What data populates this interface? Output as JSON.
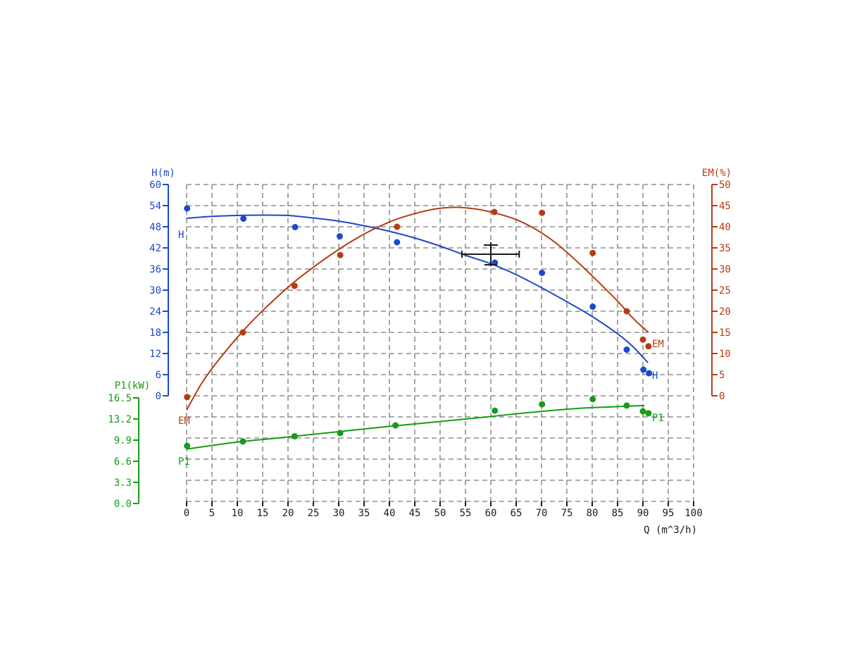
{
  "chart_data": {
    "type": "line",
    "title": "",
    "x_axis": {
      "label": "Q (m^3/h)",
      "min": 0,
      "max": 100,
      "tick_step": 5,
      "tick_labels": [
        "0",
        "5",
        "10",
        "15",
        "20",
        "25",
        "30",
        "35",
        "40",
        "45",
        "50",
        "55",
        "60",
        "65",
        "70",
        "75",
        "80",
        "85",
        "90",
        "95",
        "100"
      ],
      "text_color": "#1c1c1c"
    },
    "y_axes": [
      {
        "id": "H",
        "title": "H(m)",
        "unit": "m",
        "color": "#1c49cc",
        "min": 0,
        "max": 60,
        "tick_step": 6,
        "tick_labels": [
          "60",
          "54",
          "48",
          "42",
          "36",
          "30",
          "24",
          "18",
          "12",
          "6",
          "0"
        ]
      },
      {
        "id": "EM",
        "title": "EM(%)",
        "unit": "%",
        "color": "#b43c14",
        "min": 0,
        "max": 50,
        "tick_step": 5,
        "tick_labels": [
          "50",
          "45",
          "40",
          "35",
          "30",
          "25",
          "20",
          "15",
          "10",
          "5",
          "0"
        ]
      },
      {
        "id": "P1",
        "title": "P1(kW)",
        "unit": "kW",
        "color": "#169c16",
        "min": 0,
        "max": 16.5,
        "tick_step": 3.3,
        "tick_labels": [
          "16.5",
          "13.2",
          "9.9",
          "6.6",
          "3.3",
          "0.0"
        ]
      }
    ],
    "grid": {
      "show": true,
      "color": "#8f8f8f"
    },
    "series": [
      {
        "name": "H",
        "axis": "H",
        "color": "#1c49cc",
        "start_label": "H",
        "end_label": "H",
        "points": [
          [
            0.1,
            53.2
          ],
          [
            11.2,
            50.3
          ],
          [
            21.4,
            47.9
          ],
          [
            30.2,
            45.3
          ],
          [
            41.5,
            43.6
          ],
          [
            60.8,
            37.8
          ],
          [
            70.1,
            34.9
          ],
          [
            80.1,
            25.3
          ],
          [
            86.8,
            13.1
          ],
          [
            90.1,
            7.4
          ],
          [
            91.2,
            6.4
          ]
        ],
        "curve": [
          [
            0,
            50.4
          ],
          [
            5,
            50.95
          ],
          [
            10,
            51.2
          ],
          [
            15,
            51.3
          ],
          [
            20,
            51.2
          ],
          [
            25,
            50.5
          ],
          [
            30,
            49.6
          ],
          [
            35,
            48.3
          ],
          [
            40,
            46.7
          ],
          [
            45,
            44.8
          ],
          [
            50,
            42.5
          ],
          [
            55,
            39.9
          ],
          [
            60,
            37.5
          ],
          [
            65,
            34.4
          ],
          [
            70,
            30.7
          ],
          [
            75,
            26.7
          ],
          [
            80,
            22.5
          ],
          [
            85,
            17.6
          ],
          [
            88,
            14.0
          ],
          [
            91,
            9.4
          ]
        ]
      },
      {
        "name": "EM",
        "axis": "EM",
        "color": "#b43c14",
        "start_label": "EM",
        "end_label": "EM",
        "points": [
          [
            0.1,
            -0.3
          ],
          [
            11.1,
            15.0
          ],
          [
            21.3,
            26.0
          ],
          [
            30.3,
            33.3
          ],
          [
            41.5,
            40.0
          ],
          [
            60.7,
            43.5
          ],
          [
            70.1,
            43.3
          ],
          [
            80.1,
            33.8
          ],
          [
            86.8,
            20.0
          ],
          [
            90.0,
            13.3
          ],
          [
            91.1,
            11.7
          ]
        ],
        "curve": [
          [
            0,
            -3.4
          ],
          [
            3,
            3.0
          ],
          [
            6,
            8.0
          ],
          [
            11.1,
            15.3
          ],
          [
            16,
            21.3
          ],
          [
            21,
            26.7
          ],
          [
            26,
            31.3
          ],
          [
            31,
            35.4
          ],
          [
            36,
            38.9
          ],
          [
            41,
            41.6
          ],
          [
            45,
            43.1
          ],
          [
            49,
            44.2
          ],
          [
            53,
            44.6
          ],
          [
            57,
            44.2
          ],
          [
            61,
            43.2
          ],
          [
            65,
            41.7
          ],
          [
            69,
            39.3
          ],
          [
            73,
            36.0
          ],
          [
            77,
            31.8
          ],
          [
            81,
            27.2
          ],
          [
            85,
            22.4
          ],
          [
            88,
            18.4
          ],
          [
            91.1,
            15.0
          ]
        ]
      },
      {
        "name": "P1",
        "axis": "P1",
        "color": "#169c16",
        "start_label": "P1",
        "end_label": "P1",
        "points": [
          [
            0.1,
            9.0
          ],
          [
            11.1,
            9.7
          ],
          [
            21.3,
            10.5
          ],
          [
            30.3,
            11.0
          ],
          [
            41.2,
            12.2
          ],
          [
            60.8,
            14.5
          ],
          [
            70.1,
            15.5
          ],
          [
            80.1,
            16.3
          ],
          [
            86.8,
            15.3
          ],
          [
            90.0,
            14.4
          ],
          [
            91.1,
            14.1
          ]
        ],
        "curve": [
          [
            0,
            8.5
          ],
          [
            9,
            9.5
          ],
          [
            18.8,
            10.3
          ],
          [
            28.5,
            11.1
          ],
          [
            38.2,
            11.9
          ],
          [
            47.9,
            12.65
          ],
          [
            57.6,
            13.4
          ],
          [
            67.4,
            14.2
          ],
          [
            77.1,
            14.85
          ],
          [
            84,
            15.1
          ],
          [
            90.3,
            15.3
          ]
        ]
      }
    ],
    "duty_point": {
      "q": 60,
      "h": 40.2,
      "q_range": [
        54.3,
        65.6
      ],
      "h_range": [
        37.0,
        43.2
      ],
      "color": "#1a1a1a"
    }
  }
}
